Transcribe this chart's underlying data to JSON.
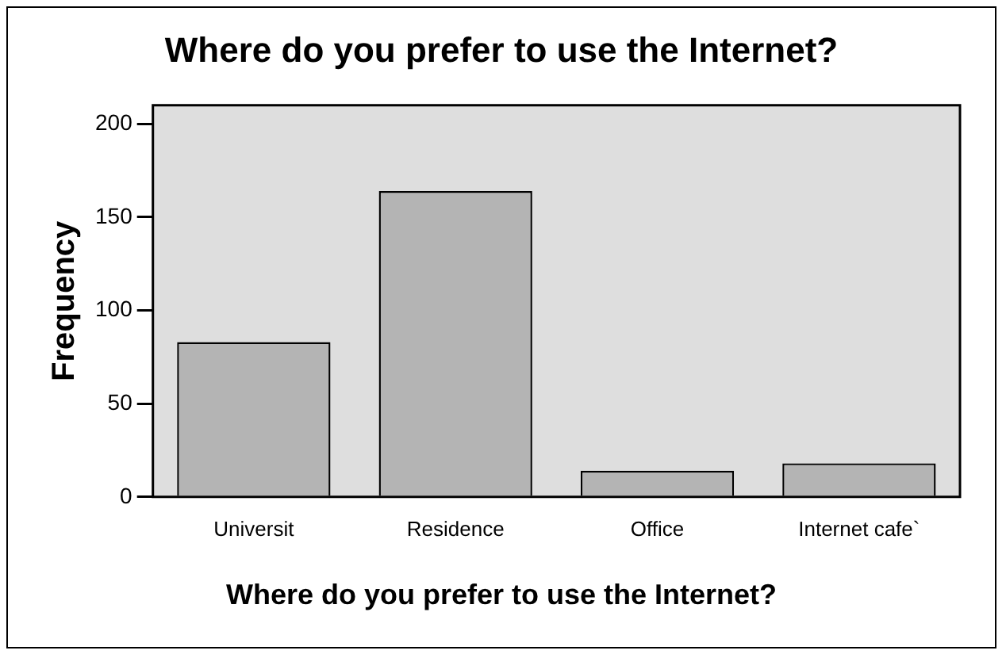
{
  "chart_data": {
    "type": "bar",
    "title": "Where do you prefer to use the Internet?",
    "xlabel": "Where do you prefer to use the Internet?",
    "ylabel": "Frequency",
    "categories": [
      "Universit",
      "Residence",
      "Office",
      "Internet cafe`"
    ],
    "values": [
      83,
      164,
      14,
      18
    ],
    "color": "#b4b4b4",
    "ylim": [
      0,
      210
    ],
    "yticks": [
      0,
      50,
      100,
      150,
      200
    ],
    "grid": false,
    "legend": false
  }
}
